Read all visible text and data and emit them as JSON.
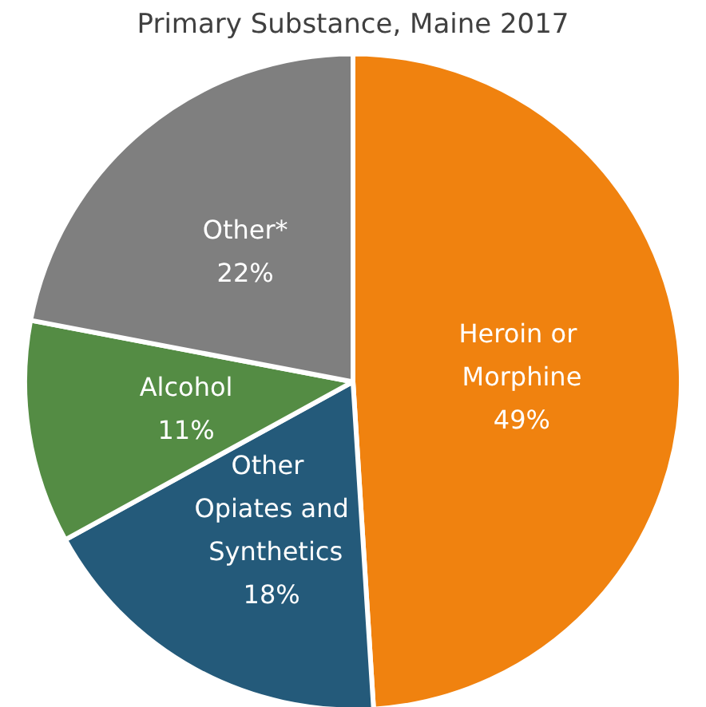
{
  "chart_data": {
    "type": "pie",
    "title": "Primary Substance, Maine 2017",
    "categories": [
      "Heroin or Morphine",
      "Other Opiates and Synthetics",
      "Alcohol",
      "Other*"
    ],
    "values": [
      49,
      18,
      11,
      22
    ],
    "colors": [
      "#f0820f",
      "#245a7a",
      "#548c44",
      "#7f7f7f"
    ],
    "value_labels": [
      "49%",
      "18%",
      "11%",
      "22%"
    ],
    "legend": false
  }
}
